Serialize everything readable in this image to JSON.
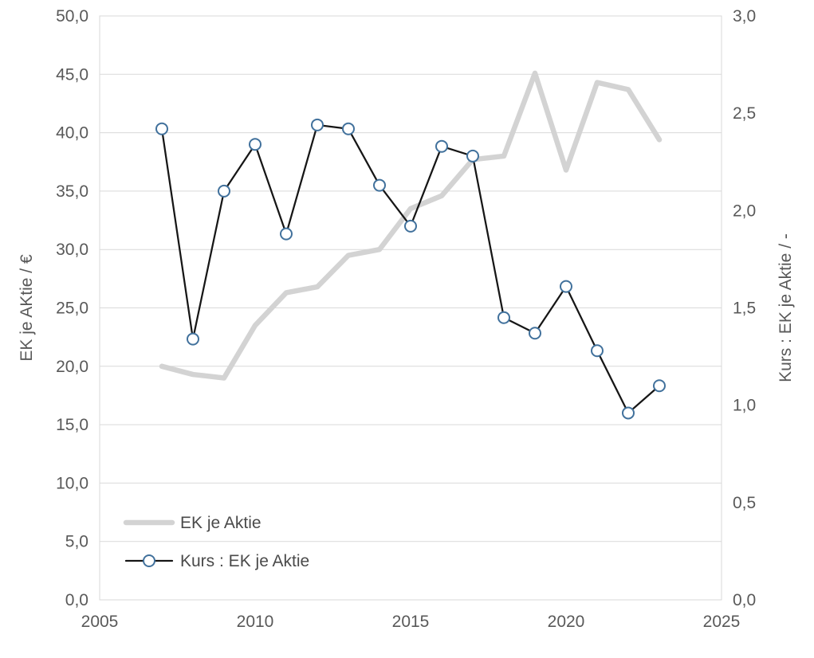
{
  "chart_data": {
    "type": "line",
    "title": "",
    "x": [
      2007,
      2008,
      2009,
      2010,
      2011,
      2012,
      2013,
      2014,
      2015,
      2016,
      2017,
      2018,
      2019,
      2020,
      2021,
      2022,
      2023
    ],
    "series": [
      {
        "id": "ek-je-aktie",
        "name": "EK je Aktie",
        "axis": "left",
        "color": "#d3d3d3",
        "width": 6.5,
        "marker": "none",
        "values": [
          20.0,
          19.3,
          19.0,
          23.5,
          26.3,
          26.8,
          29.5,
          30.0,
          33.5,
          34.6,
          37.7,
          38.0,
          45.1,
          36.8,
          44.3,
          43.7,
          39.4
        ]
      },
      {
        "id": "kurs-ek-je-aktie",
        "name": "Kurs : EK je Aktie",
        "axis": "right",
        "color": "#161616",
        "width": 2.25,
        "marker": "circle",
        "marker_color": "#41719c",
        "marker_fill": "#ffffff",
        "marker_radius": 7,
        "values": [
          2.42,
          1.34,
          2.1,
          2.34,
          1.88,
          2.44,
          2.42,
          2.13,
          1.92,
          2.33,
          2.28,
          1.45,
          1.37,
          1.61,
          1.28,
          0.96,
          1.1
        ]
      }
    ],
    "left_axis": {
      "title": "EK je AKtie / €",
      "min": 0,
      "max": 50,
      "step": 5,
      "tick_labels": [
        "0,0",
        "5,0",
        "10,0",
        "15,0",
        "20,0",
        "25,0",
        "30,0",
        "35,0",
        "40,0",
        "45,0",
        "50,0"
      ]
    },
    "right_axis": {
      "title": "Kurs : EK je Aktie / -",
      "min": 0,
      "max": 3,
      "step": 0.5,
      "tick_labels": [
        "0,0",
        "0,5",
        "1,0",
        "1,5",
        "2,0",
        "2,5",
        "3,0"
      ]
    },
    "x_axis": {
      "min": 2005,
      "max": 2025,
      "step": 5,
      "tick_labels": [
        "2005",
        "2010",
        "2015",
        "2020",
        "2025"
      ]
    },
    "legend": {
      "position": "inside-bottom-left",
      "entries": [
        "EK je Aktie",
        "Kurs : EK je Aktie"
      ]
    },
    "grid": true,
    "style": {
      "grid_color": "#d9d9d9",
      "plot_border_color": "#d9d9d9",
      "text_color": "#595959",
      "background": "#ffffff"
    }
  }
}
